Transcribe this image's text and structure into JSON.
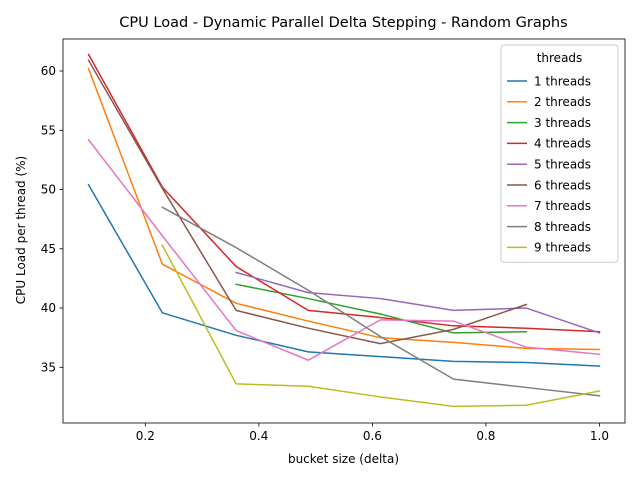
{
  "chart_data": {
    "type": "line",
    "title": "CPU Load - Dynamic Parallel Delta Stepping - Random Graphs",
    "xlabel": "bucket size (delta)",
    "ylabel": "CPU Load per thread (%)",
    "xlim": [
      0.055,
      1.045
    ],
    "ylim": [
      30.3,
      62.7
    ],
    "xticks": [
      0.2,
      0.4,
      0.6,
      0.8,
      1.0
    ],
    "xtick_labels": [
      "0.2",
      "0.4",
      "0.6",
      "0.8",
      "1.0"
    ],
    "yticks": [
      35,
      40,
      45,
      50,
      55,
      60
    ],
    "ytick_labels": [
      "35",
      "40",
      "45",
      "50",
      "55",
      "60"
    ],
    "grid": false,
    "legend": {
      "title": "threads",
      "placement": "upper-right"
    },
    "series": [
      {
        "name": "1 threads",
        "color": "#1f77b4",
        "x": [
          0.1,
          0.23,
          0.36,
          0.487,
          0.614,
          0.743,
          0.871,
          1.0
        ],
        "y": [
          50.4,
          39.6,
          37.7,
          36.3,
          35.9,
          35.5,
          35.4,
          35.1
        ]
      },
      {
        "name": "2 threads",
        "color": "#ff7f0e",
        "x": [
          0.1,
          0.23,
          0.36,
          0.487,
          0.614,
          0.743,
          0.871,
          1.0
        ],
        "y": [
          60.2,
          43.7,
          40.4,
          38.9,
          37.5,
          37.1,
          36.6,
          36.5
        ]
      },
      {
        "name": "3 threads",
        "color": "#2ca02c",
        "x": [
          0.36,
          0.487,
          0.614,
          0.743,
          0.871
        ],
        "y": [
          42.0,
          40.8,
          39.5,
          37.9,
          38.0
        ]
      },
      {
        "name": "4 threads",
        "color": "#d62728",
        "x": [
          0.1,
          0.23,
          0.36,
          0.487,
          0.614,
          0.743,
          0.871,
          1.0
        ],
        "y": [
          61.4,
          50.2,
          43.5,
          39.8,
          39.2,
          38.5,
          38.3,
          38.0
        ]
      },
      {
        "name": "5 threads",
        "color": "#9467bd",
        "x": [
          0.36,
          0.487,
          0.614,
          0.743,
          0.871,
          1.0
        ],
        "y": [
          43.0,
          41.3,
          40.8,
          39.8,
          40.0,
          37.9
        ]
      },
      {
        "name": "6 threads",
        "color": "#8c564b",
        "x": [
          0.1,
          0.23,
          0.36,
          0.487,
          0.614,
          0.743,
          0.871
        ],
        "y": [
          60.9,
          50.1,
          39.8,
          38.3,
          37.0,
          38.2,
          40.3
        ]
      },
      {
        "name": "7 threads",
        "color": "#e377c2",
        "x": [
          0.1,
          0.23,
          0.36,
          0.487,
          0.614,
          0.743,
          0.871,
          1.0
        ],
        "y": [
          54.2,
          46.1,
          38.1,
          35.6,
          39.0,
          38.9,
          36.7,
          36.1
        ]
      },
      {
        "name": "8 threads",
        "color": "#7f7f7f",
        "x": [
          0.23,
          0.36,
          0.487,
          0.614,
          0.743,
          0.871,
          1.0
        ],
        "y": [
          48.5,
          45.1,
          41.5,
          37.6,
          34.0,
          33.3,
          32.6
        ]
      },
      {
        "name": "9 threads",
        "color": "#bcbd22",
        "x": [
          0.23,
          0.36,
          0.487,
          0.614,
          0.743,
          0.871,
          1.0
        ],
        "y": [
          45.3,
          33.6,
          33.4,
          32.5,
          31.7,
          31.8,
          33.0
        ]
      }
    ]
  }
}
